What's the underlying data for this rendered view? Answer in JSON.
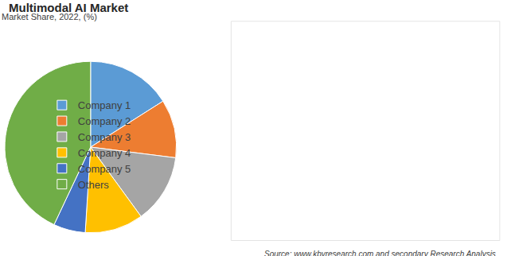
{
  "chart_data": {
    "type": "pie",
    "title": "Multimodal AI Market",
    "subtitle": "Market Share, 2022, (%)",
    "categories": [
      "Company 1",
      "Company 2",
      "Company 3",
      "Company 4",
      "Company 5",
      "Others"
    ],
    "values": [
      16,
      11,
      13,
      11,
      6,
      43
    ],
    "colors": [
      "#5b9bd5",
      "#ed7d31",
      "#a5a5a5",
      "#ffc000",
      "#4472c4",
      "#70ad47"
    ],
    "data_labels": false,
    "legend": "right",
    "annotations": [
      "Source: www.kbvresearch.com and secondary Research Analysis"
    ]
  }
}
